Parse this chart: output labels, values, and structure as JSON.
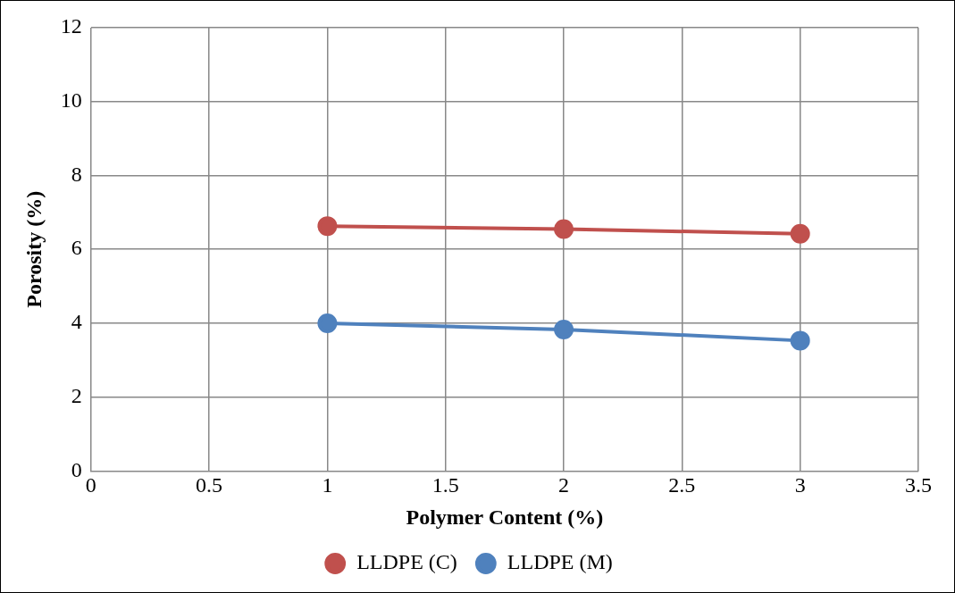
{
  "chart_data": {
    "type": "line",
    "xlabel": "Polymer Content (%)",
    "ylabel": "Porosity (%)",
    "x": [
      1,
      2,
      3
    ],
    "series": [
      {
        "name": "LLDPE (C)",
        "color": "#c0504d",
        "values": [
          6.63,
          6.55,
          6.42
        ]
      },
      {
        "name": "LLDPE (M)",
        "color": "#4f81bd",
        "values": [
          4.0,
          3.83,
          3.53
        ]
      }
    ],
    "xlim": [
      0,
      3.5
    ],
    "xticks": [
      0,
      0.5,
      1,
      1.5,
      2,
      2.5,
      3,
      3.5
    ],
    "ylim": [
      0,
      12
    ],
    "yticks": [
      0,
      2,
      4,
      6,
      8,
      10,
      12
    ],
    "grid": true,
    "legend": "bottom",
    "marker": "circle",
    "line_style": "solid"
  }
}
